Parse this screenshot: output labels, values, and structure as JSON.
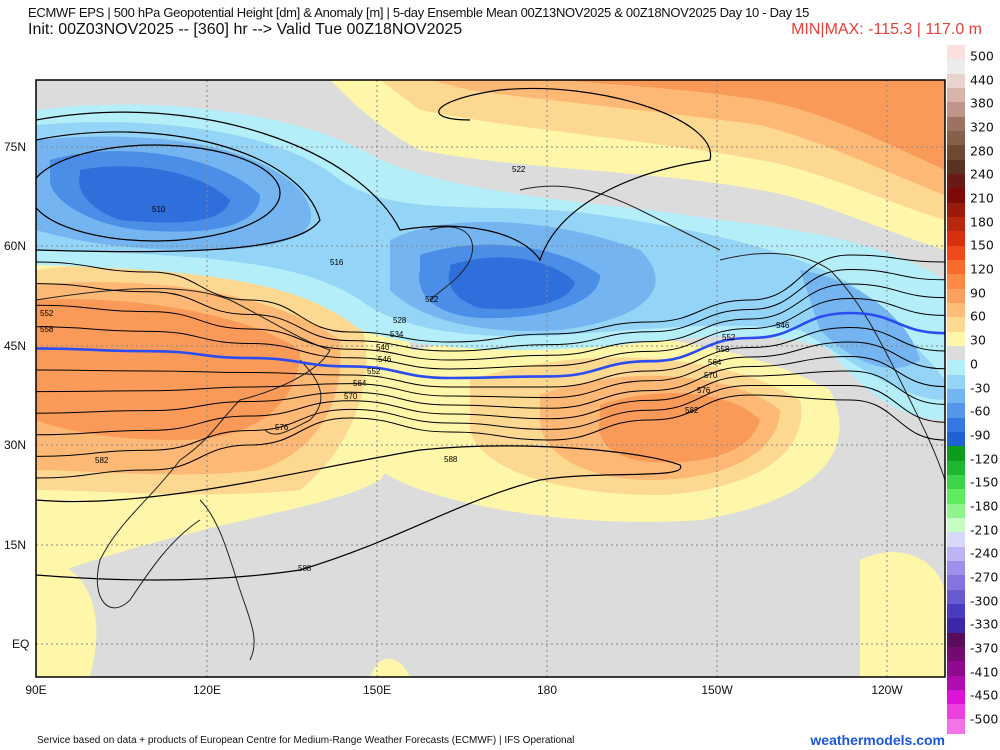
{
  "header": {
    "title": "ECMWF EPS | 500 hPa Geopotential Height [dm] & Anomaly [m] | 5-day Ensemble Mean 00Z13NOV2025 & 00Z18NOV2025   Day 10 - Day 15",
    "init": "Init: 00Z03NOV2025 -- [360] hr --> Valid Tue 00Z18NOV2025",
    "minmax": "MIN|MAX: -115.3 | 117.0 m"
  },
  "map": {
    "lat_labels": [
      "75N",
      "60N",
      "45N",
      "30N",
      "15N",
      "EQ"
    ],
    "lon_labels": [
      "90E",
      "120E",
      "150E",
      "180",
      "150W",
      "120W"
    ],
    "contour_labels": [
      "510",
      "516",
      "522",
      "522",
      "528",
      "534",
      "540",
      "546",
      "546",
      "552",
      "552",
      "552",
      "558",
      "558",
      "564",
      "564",
      "570",
      "570",
      "576",
      "576",
      "582",
      "582",
      "588",
      "588"
    ],
    "contour_values": [
      522,
      528,
      534,
      540,
      546,
      552,
      558,
      564,
      570,
      576,
      582
    ],
    "highlight_contour": 546,
    "colors": {
      "background": "#dcdcdc",
      "highlight": "#2a4cf0",
      "contour": "#000000"
    }
  },
  "colorbar": {
    "labels": [
      "500",
      "440",
      "380",
      "320",
      "280",
      "240",
      "210",
      "180",
      "150",
      "120",
      "90",
      "60",
      "30",
      "0",
      "-30",
      "-60",
      "-90",
      "-120",
      "-150",
      "-180",
      "-210",
      "-240",
      "-270",
      "-300",
      "-330",
      "-370",
      "-410",
      "-450",
      "-500"
    ],
    "colors": [
      "#fbe0e0",
      "#ececec",
      "#e8d4cc",
      "#d6b4aa",
      "#c09488",
      "#9c7260",
      "#86604a",
      "#6e4a34",
      "#5a3222",
      "#6a1a14",
      "#7c0a06",
      "#9c1a0a",
      "#b8280c",
      "#d83010",
      "#f04a1a",
      "#fa6a2a",
      "#fc8a44",
      "#fca060",
      "#fdbc78",
      "#fdd890",
      "#fef6a8",
      "#dcdcdc",
      "#b4eef8",
      "#94d4f6",
      "#74b4f0",
      "#5496ea",
      "#3478e2",
      "#1f62d4",
      "#0e9c1c",
      "#1eb830",
      "#3cd448",
      "#60ec60",
      "#90f48c",
      "#c4fcc4",
      "#d8d8f8",
      "#bcb4f4",
      "#a090ec",
      "#8474e0",
      "#6a5ad0",
      "#4a3cc0",
      "#3a28a8",
      "#5a0c5a",
      "#720a72",
      "#900a90",
      "#b00cb0",
      "#dc14d8",
      "#ee40e0",
      "#f474e8"
    ]
  },
  "footer": {
    "credit": "Service based on data + products of European Centre for Medium-Range Weather Forecasts (ECMWF) | IFS Operational",
    "site": "weathermodels.com"
  }
}
